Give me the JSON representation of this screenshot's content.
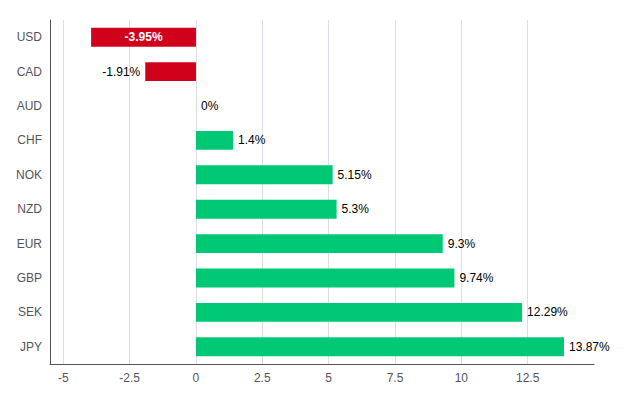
{
  "chart_data": {
    "type": "bar",
    "orientation": "horizontal",
    "categories": [
      "USD",
      "CAD",
      "AUD",
      "CHF",
      "NOK",
      "NZD",
      "EUR",
      "GBP",
      "SEK",
      "JPY"
    ],
    "values": [
      -3.95,
      -1.91,
      0.0,
      1.4,
      5.15,
      5.3,
      9.3,
      9.74,
      12.29,
      13.87
    ],
    "value_labels": [
      "-3.95%",
      "-1.91%",
      "0%",
      "1.4%",
      "5.15%",
      "5.3%",
      "9.3%",
      "9.74%",
      "12.29%",
      "13.87%"
    ],
    "colors": [
      "#D0021B",
      "#D0021B",
      "#00C875",
      "#00C875",
      "#00C875",
      "#00C875",
      "#00C875",
      "#00C875",
      "#00C875",
      "#00C875"
    ],
    "data_labels": true,
    "xlim": [
      -5.5,
      15.0
    ],
    "xticks": [
      -5,
      -2.5,
      0,
      2.5,
      5,
      7.5,
      10,
      12.5
    ],
    "grid": true
  }
}
